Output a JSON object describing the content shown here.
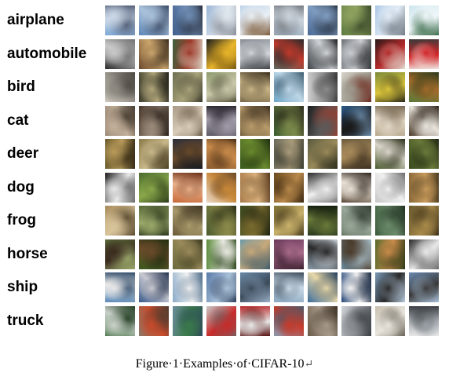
{
  "figure": {
    "classes": [
      {
        "label": "airplane",
        "tones": [
          [
            "#7fa9d6",
            "#c9d7e6",
            "#56627a"
          ],
          [
            "#5d86b8",
            "#a9c1da",
            "#3b4b66"
          ],
          [
            "#3f5e8c",
            "#6d8bb2",
            "#2a3240"
          ],
          [
            "#9bb6d4",
            "#dfe7ef",
            "#8a8f99"
          ],
          [
            "#b8cfe6",
            "#e9eff5",
            "#7d5b3a"
          ],
          [
            "#9fb0bf",
            "#cad3dc",
            "#7a7f86"
          ],
          [
            "#4a6a95",
            "#7f9cc0",
            "#1f2a38"
          ],
          [
            "#5d7a3f",
            "#8fa35f",
            "#3a4a2a"
          ],
          [
            "#a9c6e4",
            "#e2ecf6",
            "#6f7a85"
          ],
          [
            "#cfe6ee",
            "#eef6f8",
            "#3a6b4a"
          ]
        ]
      },
      {
        "label": "automobile",
        "tones": [
          [
            "#2a2a2a",
            "#c9c9c9",
            "#6d6d6d"
          ],
          [
            "#6b4a2e",
            "#caa46b",
            "#3a2a1c"
          ],
          [
            "#3e5f3e",
            "#9e3a2a",
            "#d9d2c2"
          ],
          [
            "#1c1c1c",
            "#e8b52a",
            "#7a5a12"
          ],
          [
            "#8a8f96",
            "#d2d6da",
            "#3f4246"
          ],
          [
            "#5f6a5f",
            "#c0392b",
            "#2a2a2a"
          ],
          [
            "#3a3f44",
            "#d0d4d8",
            "#1f1f1f"
          ],
          [
            "#6e7277",
            "#c9ccd0",
            "#2f3134"
          ],
          [
            "#2c1a1a",
            "#b22a2a",
            "#e6e0d6"
          ],
          [
            "#3a3a3a",
            "#d2262a",
            "#f0e6e0"
          ]
        ]
      },
      {
        "label": "bird",
        "tones": [
          [
            "#cfcac0",
            "#8e8a82",
            "#4a4640"
          ],
          [
            "#3a3a2a",
            "#b0a57a",
            "#1f1f16"
          ],
          [
            "#6c6f52",
            "#a9a37a",
            "#3b3a2a"
          ],
          [
            "#8f9a6e",
            "#c9c7a8",
            "#4a4a33"
          ],
          [
            "#7a6a4a",
            "#c8b486",
            "#3a2f1e"
          ],
          [
            "#6ea6c7",
            "#bcd6e6",
            "#3a5a6e"
          ],
          [
            "#cfcfcf",
            "#8a8a8a",
            "#3a3a3a"
          ],
          [
            "#d6d2c8",
            "#9e9a8e",
            "#6e2a1e"
          ],
          [
            "#7a8a3a",
            "#d9c43a",
            "#2a2a1a"
          ],
          [
            "#5a7a3a",
            "#a06a2a",
            "#2a3a1a"
          ]
        ]
      },
      {
        "label": "cat",
        "tones": [
          [
            "#8a7a6a",
            "#c4b09a",
            "#4a3f34"
          ],
          [
            "#4a3a2e",
            "#9a8a7a",
            "#2a2018"
          ],
          [
            "#a89a86",
            "#d8ccb8",
            "#6a5a48"
          ],
          [
            "#5e5a66",
            "#a09aa8",
            "#2e2a32"
          ],
          [
            "#6a5a3a",
            "#b89a6a",
            "#3a2e1e"
          ],
          [
            "#3a5a2e",
            "#7a8a4a",
            "#2a2a1a"
          ],
          [
            "#1e1e1e",
            "#5a5a5a",
            "#9a3a2a"
          ],
          [
            "#2a5a8a",
            "#1a1a1a",
            "#6a8aa8"
          ],
          [
            "#b8a88e",
            "#e0d6c4",
            "#7a6a54"
          ],
          [
            "#4a3a2a",
            "#e8e4dc",
            "#2a1e14"
          ]
        ]
      },
      {
        "label": "deer",
        "tones": [
          [
            "#6a5a2e",
            "#b89a5a",
            "#3a2e16"
          ],
          [
            "#8a7a4a",
            "#c8b88a",
            "#4a3e22"
          ],
          [
            "#2a2e3a",
            "#6a4a2a",
            "#141820"
          ],
          [
            "#8a5a2e",
            "#c88a4a",
            "#4a2e16"
          ],
          [
            "#3a5a1e",
            "#6a8a2e",
            "#1e2e0e"
          ],
          [
            "#6a6a5a",
            "#a89a7a",
            "#3a3a2e"
          ],
          [
            "#5a5a3e",
            "#9a8a5a",
            "#2e2e1e"
          ],
          [
            "#6a5a3e",
            "#a88a5a",
            "#3a2e1e"
          ],
          [
            "#4a5a2e",
            "#d8d4c8",
            "#2a2e18"
          ],
          [
            "#3a4a1e",
            "#6a7a3a",
            "#1e2610"
          ]
        ]
      },
      {
        "label": "dog",
        "tones": [
          [
            "#1e1e1e",
            "#e8e8e8",
            "#6a6a6a"
          ],
          [
            "#4a6a2e",
            "#8aa84a",
            "#2a3a18"
          ],
          [
            "#c86a3a",
            "#e8b08a",
            "#6a2e16"
          ],
          [
            "#e8d8c8",
            "#c8883a",
            "#6a4a2a"
          ],
          [
            "#a87a4a",
            "#d8b07a",
            "#5a3a1e"
          ],
          [
            "#6a4a1e",
            "#b8884a",
            "#3a2610"
          ],
          [
            "#2a2a2a",
            "#f0f0f0",
            "#7a7a7a"
          ],
          [
            "#5a4a3a",
            "#e8e0d4",
            "#2a221a"
          ],
          [
            "#c8c8c8",
            "#f0f0f0",
            "#6a6a6a"
          ],
          [
            "#8a6a3a",
            "#c89a5a",
            "#4a3a1e"
          ]
        ]
      },
      {
        "label": "frog",
        "tones": [
          [
            "#a88a5a",
            "#d8c49a",
            "#5a4a2e"
          ],
          [
            "#5a6a3a",
            "#9aa86a",
            "#2e3a1e"
          ],
          [
            "#6a5a3a",
            "#a89a6a",
            "#3a2e1e"
          ],
          [
            "#4a5a2e",
            "#8a8a4a",
            "#2a2e16"
          ],
          [
            "#3a4a1e",
            "#7a6a2e",
            "#1e2410"
          ],
          [
            "#8a7a3a",
            "#c8b06a",
            "#4a3e1e"
          ],
          [
            "#2a3a1e",
            "#6a7a3a",
            "#141e0e"
          ],
          [
            "#5a6a5a",
            "#9aa89a",
            "#2e3a2e"
          ],
          [
            "#3a5a3a",
            "#6a8a6a",
            "#1e2e1e"
          ],
          [
            "#6a5a2e",
            "#a88a4a",
            "#3a2e16"
          ]
        ]
      },
      {
        "label": "horse",
        "tones": [
          [
            "#5a6a3a",
            "#3a2a1e",
            "#9aa86a"
          ],
          [
            "#3a5a1e",
            "#6a4a2a",
            "#1e2e0e"
          ],
          [
            "#6a6a3a",
            "#9a8a5a",
            "#3a3a1e"
          ],
          [
            "#5a8a3a",
            "#e8e8e0",
            "#2e4a1e"
          ],
          [
            "#6a9aa8",
            "#c8a87a",
            "#3a5a6a"
          ],
          [
            "#6a3a5a",
            "#a86a8a",
            "#3a1e2e"
          ],
          [
            "#8a9aa8",
            "#2a2a2a",
            "#c8d0d8"
          ],
          [
            "#6a8a9a",
            "#4a3a2a",
            "#a8c0cc"
          ],
          [
            "#5a6a2e",
            "#c88a4a",
            "#2e3a16"
          ],
          [
            "#2a2a2a",
            "#e8e8e8",
            "#6a6a6a"
          ]
        ]
      },
      {
        "label": "ship",
        "tones": [
          [
            "#5a8ab8",
            "#e8e8e8",
            "#2e4a6a"
          ],
          [
            "#3a5a8a",
            "#c8c8d0",
            "#1e2e4a"
          ],
          [
            "#8aaac8",
            "#f0f0f0",
            "#4a6a8a"
          ],
          [
            "#5a7aa8",
            "#a8c0d8",
            "#2e3e5a"
          ],
          [
            "#6a8aa8",
            "#3a4a5a",
            "#9ab0c8"
          ],
          [
            "#8aa8c0",
            "#c8d8e6",
            "#3a4a5a"
          ],
          [
            "#3a6a9a",
            "#e8d8a8",
            "#1e3a5a"
          ],
          [
            "#2a4a7a",
            "#f0f0f0",
            "#14243e"
          ],
          [
            "#7a9ab8",
            "#2a2a2a",
            "#b8cce0"
          ],
          [
            "#6a8ab0",
            "#3a3a3a",
            "#a8c0d8"
          ]
        ]
      },
      {
        "label": "truck",
        "tones": [
          [
            "#3a6a3a",
            "#c8d0c8",
            "#1e3a1e"
          ],
          [
            "#8a7a6a",
            "#c84a2a",
            "#4a3a2e"
          ],
          [
            "#6a8a9a",
            "#3a7a4a",
            "#2e4a5a"
          ],
          [
            "#c8c8c8",
            "#c82a2a",
            "#6a6a6a"
          ],
          [
            "#b82a2a",
            "#e8e8e8",
            "#5a1414"
          ],
          [
            "#8a9ab0",
            "#c83a2a",
            "#4a5a6a"
          ],
          [
            "#6a5a4a",
            "#a89a8a",
            "#3a2e22"
          ],
          [
            "#d0d4d8",
            "#8a8e92",
            "#3a3e42"
          ],
          [
            "#c8c0b0",
            "#e8e4dc",
            "#6a6458"
          ],
          [
            "#e8e8e8",
            "#9aa0a6",
            "#3a3e42"
          ]
        ]
      }
    ]
  },
  "caption": {
    "w1": "Figure",
    "d1": "·",
    "w2": "1",
    "d2": "·",
    "w3": "Examples",
    "d3": "·",
    "w4": "of",
    "d4": "·",
    "w5": "CIFAR-10",
    "mark": "↵"
  }
}
